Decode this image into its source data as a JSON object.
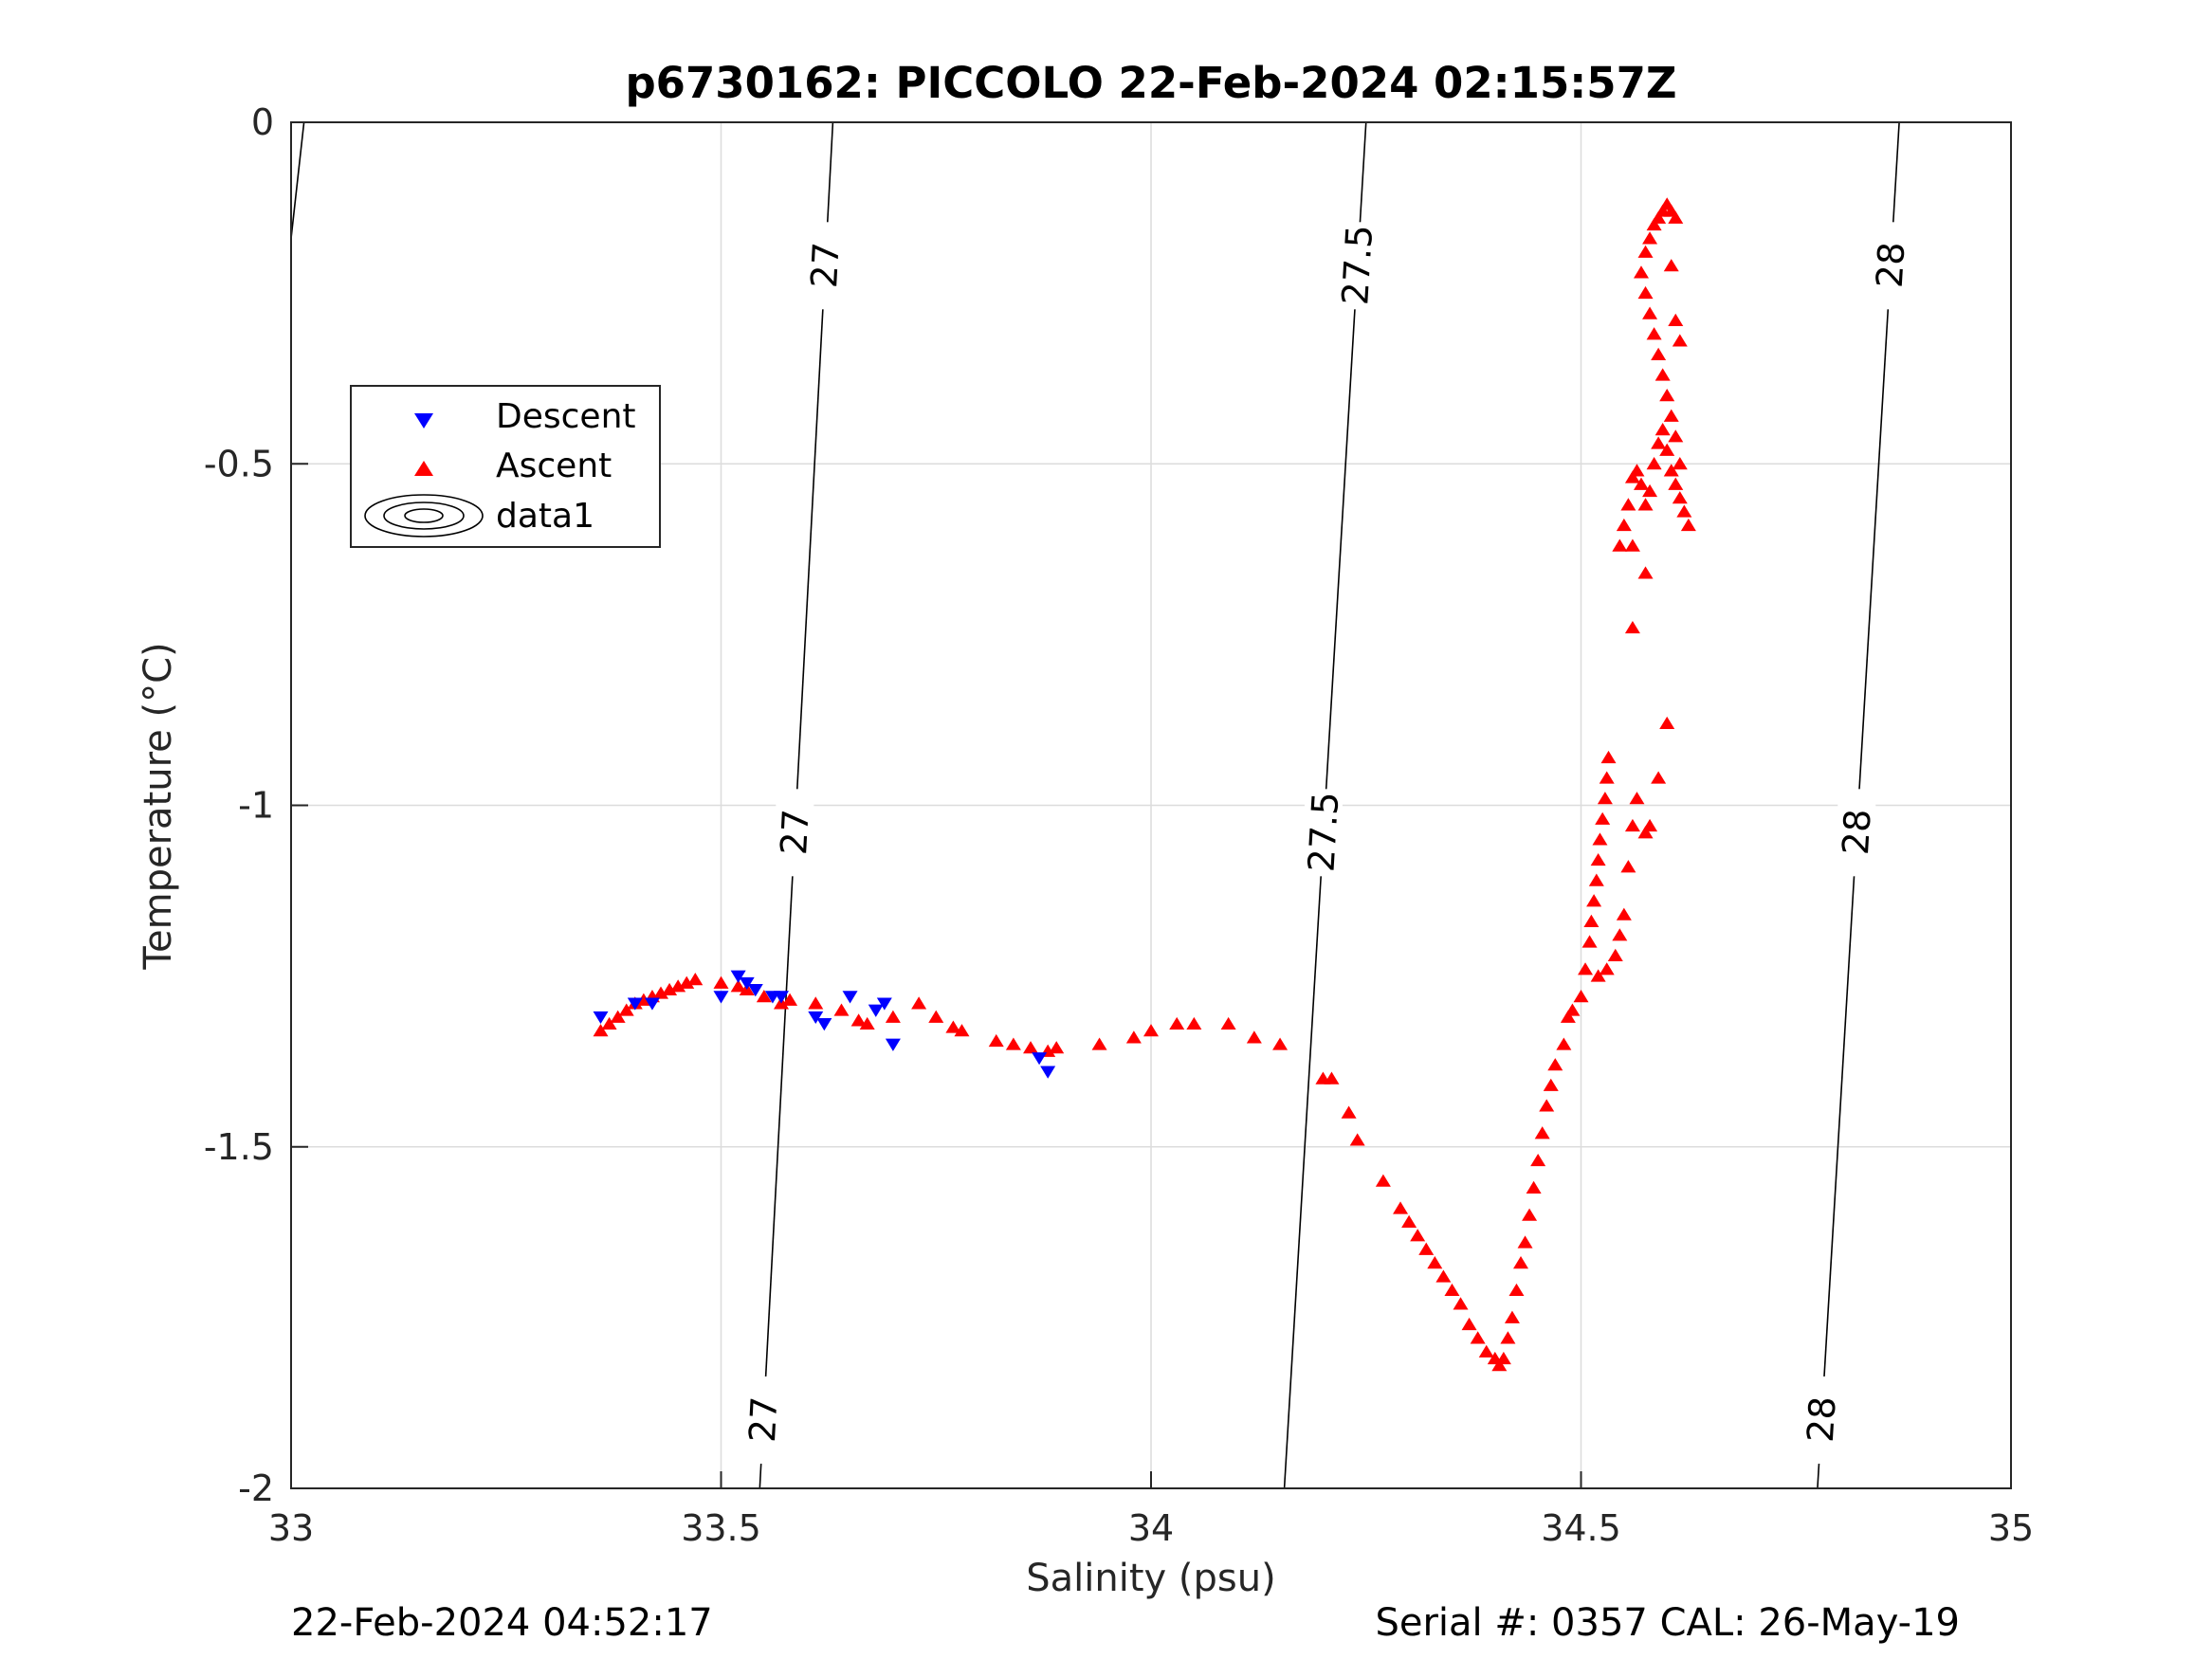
{
  "chart_data": {
    "type": "scatter",
    "title": "p6730162: PICCOLO 22-Feb-2024 02:15:57Z",
    "xlabel": "Salinity (psu)",
    "ylabel": "Temperature (°C)",
    "xlim": [
      33,
      35
    ],
    "ylim": [
      -2,
      0
    ],
    "xticks": [
      "33",
      "33.5",
      "34",
      "34.5",
      "35"
    ],
    "yticks": [
      "0",
      "-0.5",
      "-1",
      "-1.5",
      "-2"
    ],
    "grid": true,
    "legend_position": "upper-left",
    "legend": [
      "Descent",
      "Ascent",
      "data1"
    ],
    "series": [
      {
        "name": "Descent",
        "marker": "triangle-down",
        "color": "#0000ff",
        "points": [
          [
            33.36,
            -1.31
          ],
          [
            33.4,
            -1.29
          ],
          [
            33.42,
            -1.29
          ],
          [
            33.5,
            -1.28
          ],
          [
            33.52,
            -1.25
          ],
          [
            33.53,
            -1.26
          ],
          [
            33.54,
            -1.27
          ],
          [
            33.56,
            -1.28
          ],
          [
            33.57,
            -1.28
          ],
          [
            33.61,
            -1.31
          ],
          [
            33.62,
            -1.32
          ],
          [
            33.65,
            -1.28
          ],
          [
            33.68,
            -1.3
          ],
          [
            33.69,
            -1.29
          ],
          [
            33.7,
            -1.35
          ],
          [
            33.87,
            -1.37
          ],
          [
            33.88,
            -1.39
          ]
        ]
      },
      {
        "name": "Ascent",
        "marker": "triangle-up",
        "color": "#ff0000",
        "points": [
          [
            33.36,
            -1.33
          ],
          [
            33.37,
            -1.32
          ],
          [
            33.38,
            -1.31
          ],
          [
            33.39,
            -1.3
          ],
          [
            33.4,
            -1.29
          ],
          [
            33.41,
            -1.285
          ],
          [
            33.42,
            -1.28
          ],
          [
            33.43,
            -1.275
          ],
          [
            33.44,
            -1.27
          ],
          [
            33.45,
            -1.265
          ],
          [
            33.46,
            -1.26
          ],
          [
            33.47,
            -1.255
          ],
          [
            33.5,
            -1.26
          ],
          [
            33.52,
            -1.265
          ],
          [
            33.53,
            -1.27
          ],
          [
            33.55,
            -1.28
          ],
          [
            33.57,
            -1.29
          ],
          [
            33.58,
            -1.285
          ],
          [
            33.61,
            -1.29
          ],
          [
            33.64,
            -1.3
          ],
          [
            33.66,
            -1.315
          ],
          [
            33.67,
            -1.32
          ],
          [
            33.7,
            -1.31
          ],
          [
            33.73,
            -1.29
          ],
          [
            33.75,
            -1.31
          ],
          [
            33.77,
            -1.325
          ],
          [
            33.78,
            -1.33
          ],
          [
            33.82,
            -1.345
          ],
          [
            33.84,
            -1.35
          ],
          [
            33.86,
            -1.355
          ],
          [
            33.88,
            -1.36
          ],
          [
            33.89,
            -1.355
          ],
          [
            33.94,
            -1.35
          ],
          [
            33.98,
            -1.34
          ],
          [
            34.0,
            -1.33
          ],
          [
            34.03,
            -1.32
          ],
          [
            34.05,
            -1.32
          ],
          [
            34.09,
            -1.32
          ],
          [
            34.12,
            -1.34
          ],
          [
            34.15,
            -1.35
          ],
          [
            34.2,
            -1.4
          ],
          [
            34.21,
            -1.4
          ],
          [
            34.23,
            -1.45
          ],
          [
            34.24,
            -1.49
          ],
          [
            34.27,
            -1.55
          ],
          [
            34.29,
            -1.59
          ],
          [
            34.3,
            -1.61
          ],
          [
            34.31,
            -1.63
          ],
          [
            34.32,
            -1.65
          ],
          [
            34.33,
            -1.67
          ],
          [
            34.34,
            -1.69
          ],
          [
            34.35,
            -1.71
          ],
          [
            34.36,
            -1.73
          ],
          [
            34.37,
            -1.76
          ],
          [
            34.38,
            -1.78
          ],
          [
            34.39,
            -1.8
          ],
          [
            34.4,
            -1.81
          ],
          [
            34.405,
            -1.82
          ],
          [
            34.41,
            -1.81
          ],
          [
            34.415,
            -1.78
          ],
          [
            34.42,
            -1.75
          ],
          [
            34.425,
            -1.71
          ],
          [
            34.43,
            -1.67
          ],
          [
            34.435,
            -1.64
          ],
          [
            34.44,
            -1.6
          ],
          [
            34.445,
            -1.56
          ],
          [
            34.45,
            -1.52
          ],
          [
            34.455,
            -1.48
          ],
          [
            34.46,
            -1.44
          ],
          [
            34.465,
            -1.41
          ],
          [
            34.47,
            -1.38
          ],
          [
            34.48,
            -1.35
          ],
          [
            34.485,
            -1.31
          ],
          [
            34.49,
            -1.3
          ],
          [
            34.5,
            -1.28
          ],
          [
            34.505,
            -1.24
          ],
          [
            34.51,
            -1.2
          ],
          [
            34.512,
            -1.17
          ],
          [
            34.515,
            -1.14
          ],
          [
            34.518,
            -1.11
          ],
          [
            34.52,
            -1.08
          ],
          [
            34.522,
            -1.05
          ],
          [
            34.525,
            -1.02
          ],
          [
            34.528,
            -0.99
          ],
          [
            34.53,
            -0.96
          ],
          [
            34.532,
            -0.93
          ],
          [
            34.52,
            -1.25
          ],
          [
            34.53,
            -1.24
          ],
          [
            34.54,
            -1.22
          ],
          [
            34.545,
            -1.19
          ],
          [
            34.55,
            -1.16
          ],
          [
            34.555,
            -1.09
          ],
          [
            34.56,
            -1.03
          ],
          [
            34.565,
            -0.99
          ],
          [
            34.575,
            -1.04
          ],
          [
            34.58,
            -1.03
          ],
          [
            34.59,
            -0.96
          ],
          [
            34.6,
            -0.88
          ],
          [
            34.545,
            -0.62
          ],
          [
            34.55,
            -0.59
          ],
          [
            34.555,
            -0.56
          ],
          [
            34.56,
            -0.52
          ],
          [
            34.565,
            -0.51
          ],
          [
            34.57,
            -0.53
          ],
          [
            34.575,
            -0.56
          ],
          [
            34.58,
            -0.54
          ],
          [
            34.585,
            -0.5
          ],
          [
            34.59,
            -0.47
          ],
          [
            34.595,
            -0.45
          ],
          [
            34.6,
            -0.48
          ],
          [
            34.605,
            -0.51
          ],
          [
            34.61,
            -0.53
          ],
          [
            34.615,
            -0.55
          ],
          [
            34.62,
            -0.57
          ],
          [
            34.625,
            -0.59
          ],
          [
            34.615,
            -0.5
          ],
          [
            34.61,
            -0.46
          ],
          [
            34.605,
            -0.43
          ],
          [
            34.6,
            -0.4
          ],
          [
            34.595,
            -0.37
          ],
          [
            34.59,
            -0.34
          ],
          [
            34.585,
            -0.31
          ],
          [
            34.58,
            -0.28
          ],
          [
            34.575,
            -0.25
          ],
          [
            34.57,
            -0.22
          ],
          [
            34.575,
            -0.19
          ],
          [
            34.58,
            -0.17
          ],
          [
            34.585,
            -0.15
          ],
          [
            34.59,
            -0.14
          ],
          [
            34.595,
            -0.13
          ],
          [
            34.6,
            -0.12
          ],
          [
            34.605,
            -0.13
          ],
          [
            34.61,
            -0.14
          ],
          [
            34.605,
            -0.21
          ],
          [
            34.61,
            -0.29
          ],
          [
            34.615,
            -0.32
          ],
          [
            34.56,
            -0.62
          ],
          [
            34.575,
            -0.66
          ],
          [
            34.56,
            -0.74
          ]
        ]
      }
    ],
    "contours": [
      {
        "level": "27",
        "s_at_top": 33.63,
        "s_at_bottom": 33.545,
        "labels": [
          {
            "text": "27",
            "t": -0.21
          },
          {
            "text": "27",
            "t": -1.04
          },
          {
            "text": "27",
            "t": -1.9
          }
        ]
      },
      {
        "level": "27.5",
        "s_at_top": 34.25,
        "s_at_bottom": 34.155,
        "labels": [
          {
            "text": "27.5",
            "t": -0.21
          },
          {
            "text": "27.5",
            "t": -1.04
          }
        ]
      },
      {
        "level": "28",
        "s_at_top": 34.87,
        "s_at_bottom": 34.775,
        "labels": [
          {
            "text": "28",
            "t": -0.21
          },
          {
            "text": "28",
            "t": -1.04
          },
          {
            "text": "28",
            "t": -1.9
          }
        ]
      },
      {
        "level": "",
        "s_at_top": 33.015,
        "s_at_bottom": 33.0,
        "t_bottom": -0.17,
        "labels": []
      }
    ]
  },
  "footer": {
    "left": "22-Feb-2024 04:52:17",
    "right": "Serial #: 0357  CAL: 26-May-19"
  }
}
